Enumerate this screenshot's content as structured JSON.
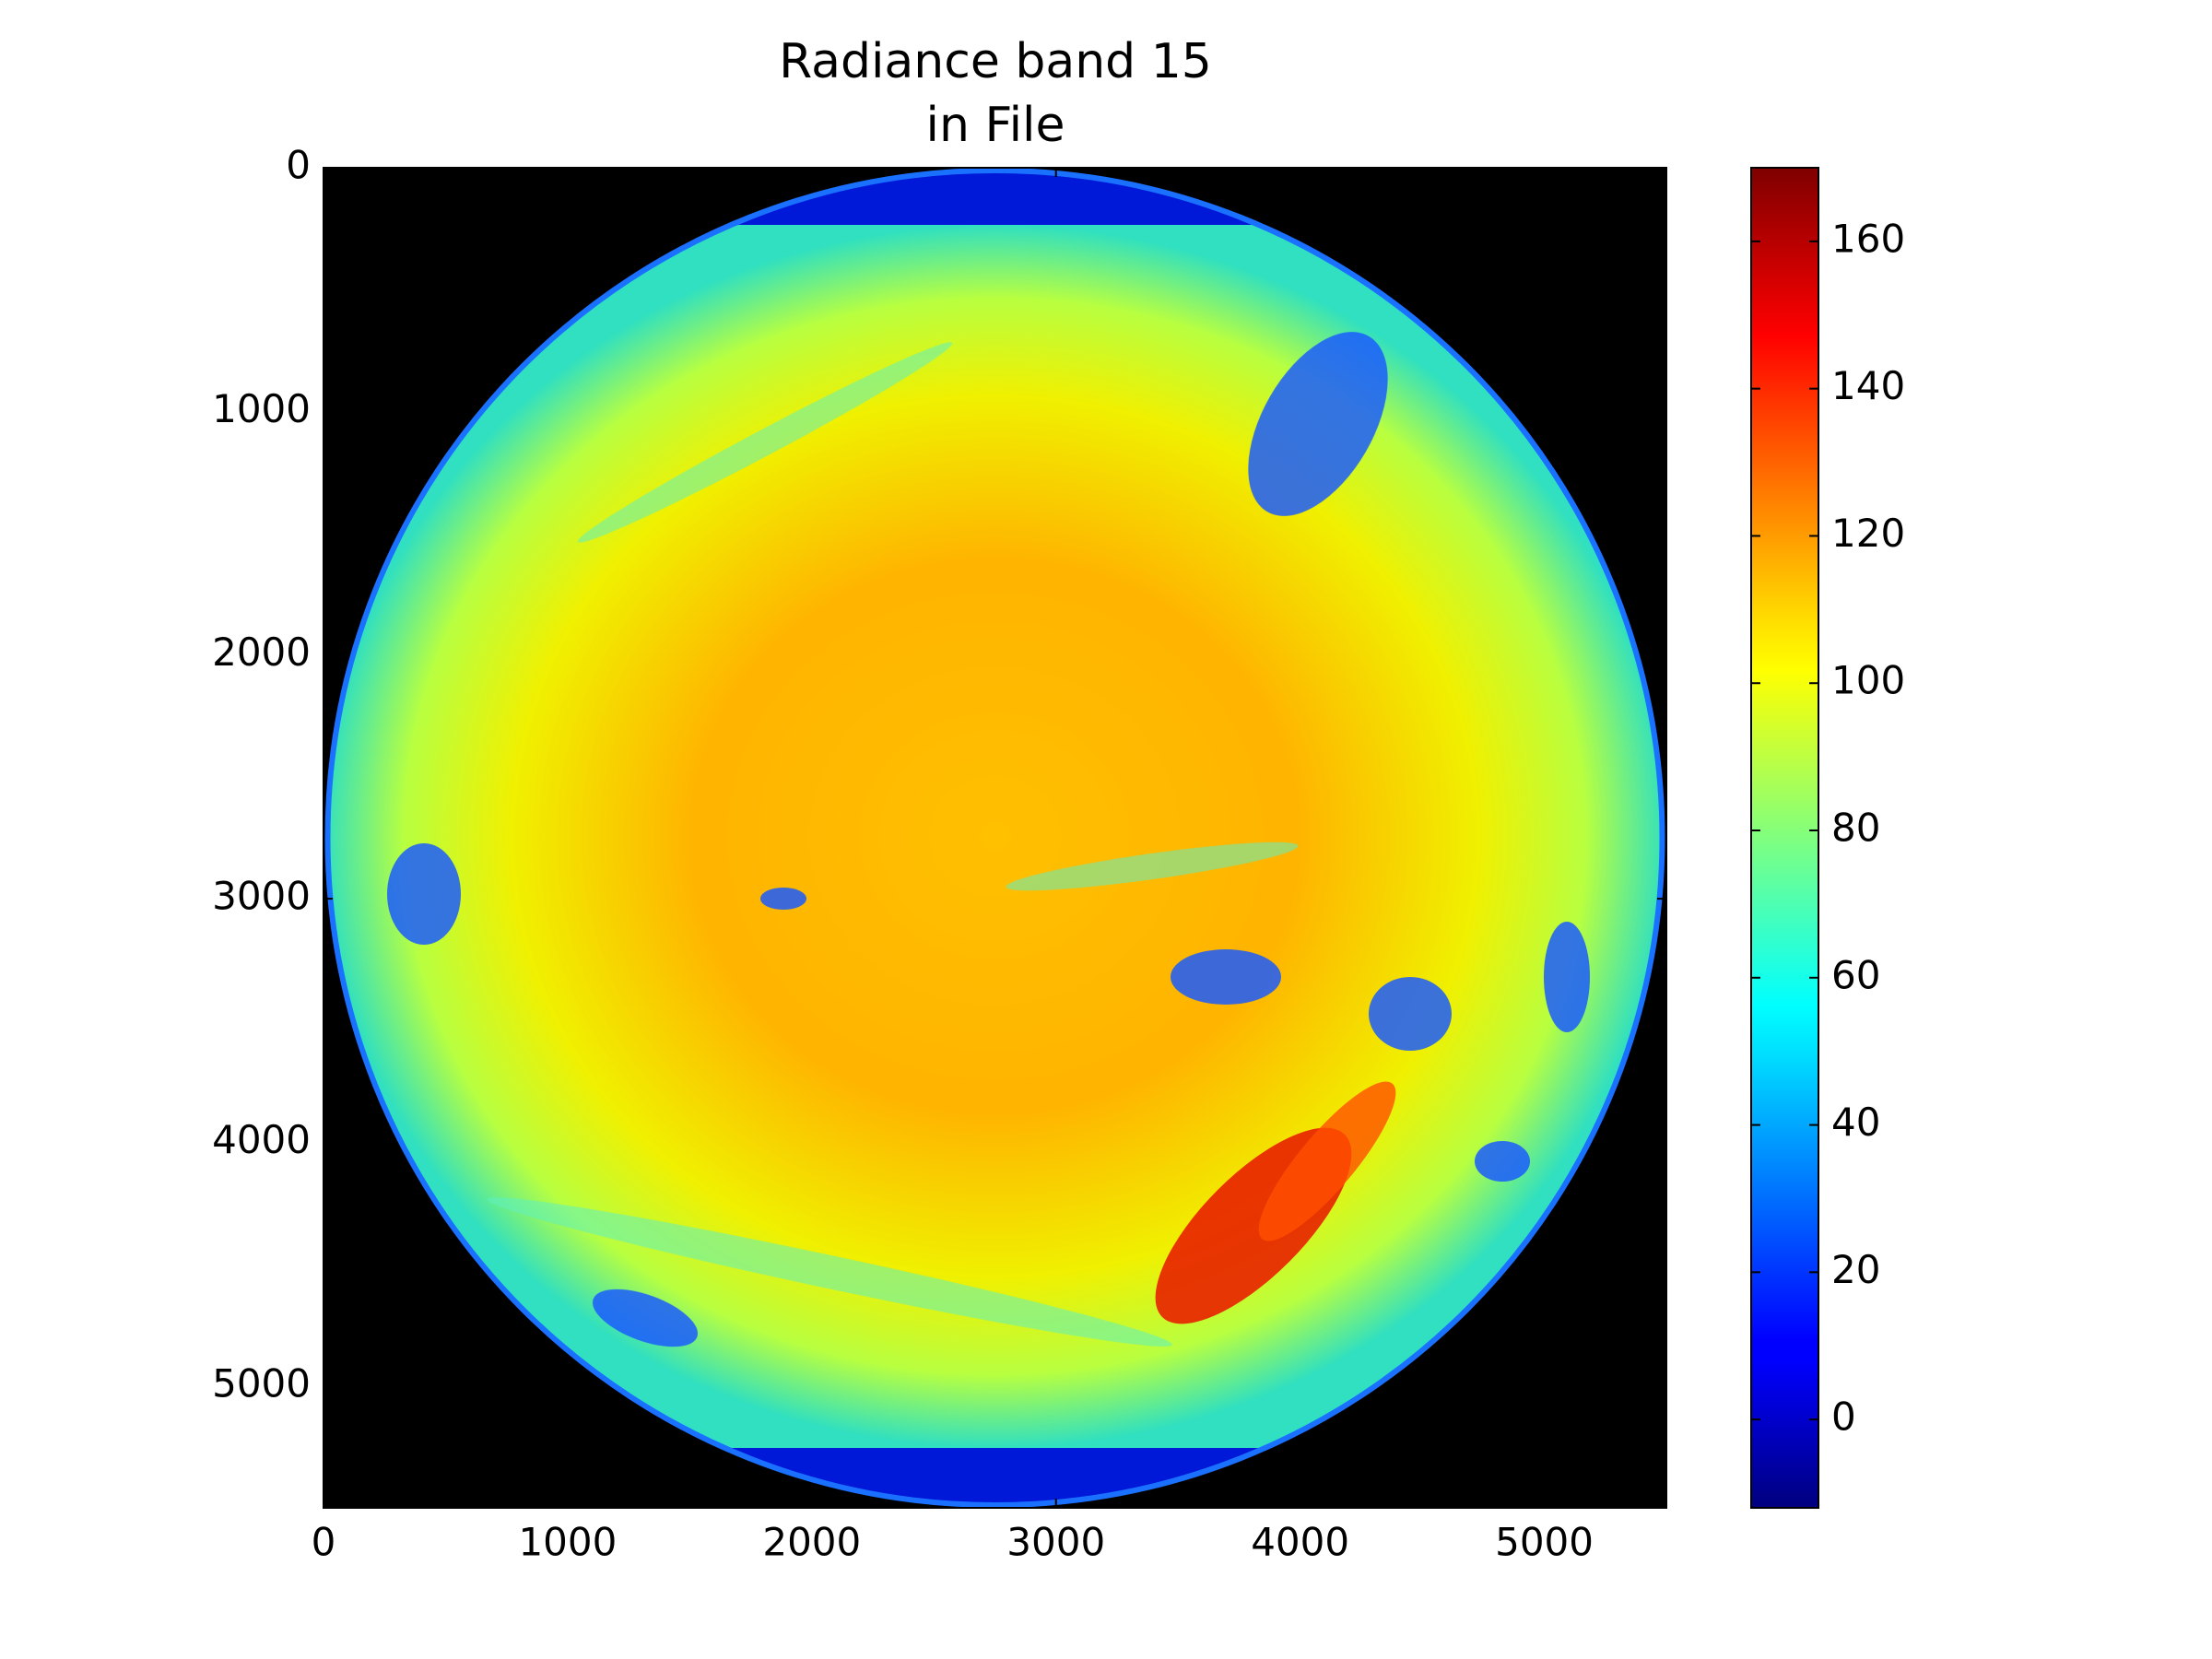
{
  "chart_data": {
    "type": "image",
    "title": [
      "Radiance band 15",
      "in File"
    ],
    "xlim": [
      0,
      5500
    ],
    "ylim": [
      5500,
      0
    ],
    "xticks": [
      0,
      1000,
      2000,
      3000,
      4000,
      5000
    ],
    "yticks": [
      0,
      1000,
      2000,
      3000,
      4000,
      5000
    ],
    "colorbar": {
      "colormap": "jet",
      "clim": [
        -12,
        170
      ],
      "ticks": [
        0,
        20,
        40,
        60,
        80,
        100,
        120,
        140,
        160
      ]
    }
  }
}
